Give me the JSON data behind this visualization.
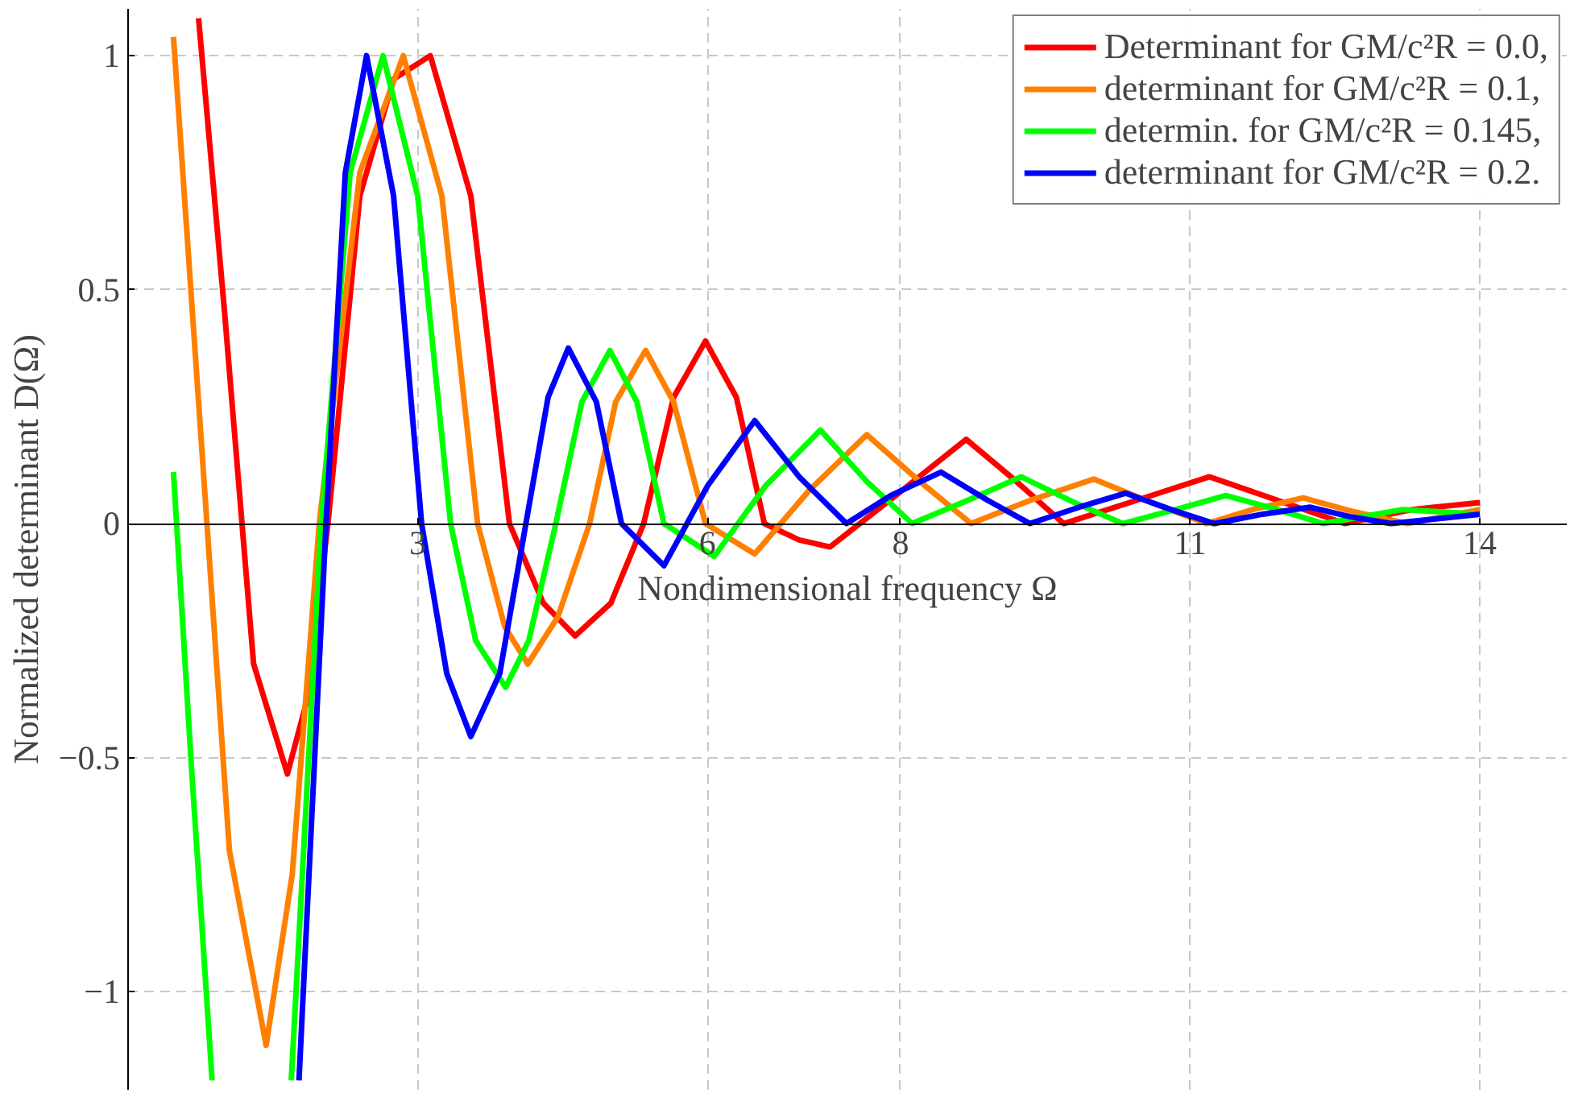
{
  "chart_data": {
    "type": "line",
    "xlabel": "Nondimensional frequency Ω",
    "ylabel": "Normalized determinant D(Ω)",
    "xlim": [
      0,
      14.9
    ],
    "ylim": [
      -1.21,
      1.1
    ],
    "xticks": [
      3,
      6,
      8,
      11,
      14
    ],
    "yticks": [
      {
        "value": -1,
        "label": "−1"
      },
      {
        "value": -0.5,
        "label": "−0.5"
      },
      0,
      0.5,
      1
    ],
    "grid": true,
    "legend": "top right",
    "marker": "none",
    "line_style": "solid",
    "series": [
      {
        "name": "Determinant for GM/c²R = 0.0,",
        "color": "#ff0000",
        "x": [
          0.73,
          1.0,
          1.3,
          1.65,
          1.85,
          2.07,
          2.4,
          2.75,
          3.13,
          3.55,
          3.95,
          4.3,
          4.63,
          5.0,
          5.34,
          5.65,
          5.98,
          6.3,
          6.59,
          6.95,
          7.27,
          7.95,
          8.68,
          9.2,
          9.69,
          10.45,
          11.2,
          11.9,
          12.6,
          13.3,
          14.0
        ],
        "values": [
          1.08,
          0.45,
          -0.3,
          -0.535,
          -0.38,
          0,
          0.7,
          0.95,
          1.0,
          0.7,
          0,
          -0.17,
          -0.24,
          -0.17,
          0,
          0.27,
          0.39,
          0.27,
          0,
          -0.035,
          -0.05,
          0.06,
          0.18,
          0.09,
          0.0,
          0.05,
          0.1,
          0.05,
          0.0,
          0.03,
          0.045
        ]
      },
      {
        "name": "determinant for GM/c²R = 0.1,",
        "color": "#ff8000",
        "x": [
          0.47,
          0.75,
          1.05,
          1.43,
          1.7,
          1.98,
          2.4,
          2.85,
          3.25,
          3.62,
          3.9,
          4.14,
          4.45,
          4.78,
          5.05,
          5.36,
          5.65,
          5.98,
          6.49,
          7.05,
          7.65,
          8.2,
          8.73,
          9.35,
          10.0,
          10.6,
          11.17,
          11.65,
          12.17,
          12.7,
          13.25,
          14.0
        ],
        "values": [
          1.04,
          0.2,
          -0.7,
          -1.115,
          -0.75,
          0,
          0.75,
          1.0,
          0.7,
          0,
          -0.22,
          -0.3,
          -0.2,
          0,
          0.26,
          0.37,
          0.26,
          0,
          -0.065,
          0.07,
          0.19,
          0.09,
          0,
          0.05,
          0.095,
          0.045,
          0,
          0.03,
          0.055,
          0.025,
          0,
          0.03
        ]
      },
      {
        "name": "determin. for GM/c²R = 0.145,",
        "color": "#00ff00",
        "x": [
          0.47,
          0.65,
          0.87,
          1.2,
          1.69,
          2.0,
          2.3,
          2.64,
          3.0,
          3.34,
          3.6,
          3.91,
          4.15,
          4.43,
          4.7,
          4.99,
          5.27,
          5.55,
          6.07,
          6.6,
          7.17,
          7.65,
          8.12,
          8.7,
          9.25,
          9.8,
          10.3,
          10.85,
          11.37,
          11.9,
          12.38,
          13.2,
          14.0
        ],
        "values": [
          0.11,
          -0.5,
          -1.19,
          null,
          -1.19,
          0,
          0.75,
          1.0,
          0.7,
          0,
          -0.25,
          -0.35,
          -0.25,
          0,
          0.26,
          0.37,
          0.26,
          0,
          -0.07,
          0.08,
          0.2,
          0.09,
          0,
          0.05,
          0.1,
          0.045,
          0,
          0.03,
          0.06,
          0.03,
          0,
          0.03,
          0.02
        ]
      },
      {
        "name": "determinant for GM/c²R = 0.2.",
        "color": "#0000ff",
        "x": [
          1.77,
          2.05,
          2.25,
          2.47,
          2.75,
          3.04,
          3.3,
          3.55,
          3.85,
          4.12,
          4.35,
          4.56,
          4.85,
          5.11,
          5.55,
          6.0,
          6.49,
          6.95,
          7.44,
          7.9,
          8.42,
          8.9,
          9.34,
          9.85,
          10.33,
          10.8,
          11.25,
          11.75,
          12.24,
          12.65,
          13.08,
          14.0
        ],
        "values": [
          -1.19,
          0,
          0.75,
          1.0,
          0.7,
          0,
          -0.32,
          -0.455,
          -0.32,
          0,
          0.27,
          0.375,
          0.26,
          0,
          -0.09,
          0.08,
          0.22,
          0.1,
          0,
          0.06,
          0.11,
          0.05,
          0,
          0.035,
          0.065,
          0.03,
          0,
          0.02,
          0.035,
          0.015,
          0,
          0.02
        ]
      }
    ]
  }
}
